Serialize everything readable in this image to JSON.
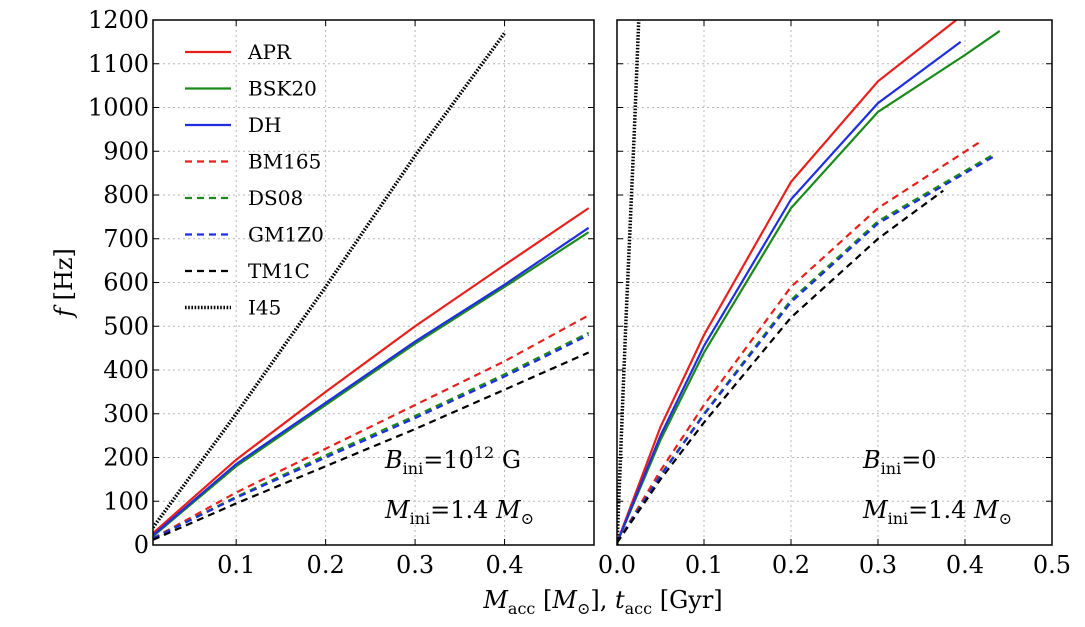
{
  "chart_data": [
    {
      "type": "line",
      "ylabel": [
        {
          "text": "f",
          "style": "italic"
        },
        {
          "text": " [Hz]",
          "style": "normal"
        }
      ],
      "xlabel": [
        {
          "text": "M",
          "style": "italic"
        },
        {
          "text": "acc",
          "style": "sub"
        },
        {
          "text": " [",
          "style": "normal"
        },
        {
          "text": "M",
          "style": "italic"
        },
        {
          "text": "⊙",
          "style": "sub"
        },
        {
          "text": "], ",
          "style": "normal"
        },
        {
          "text": "t",
          "style": "italic"
        },
        {
          "text": "acc",
          "style": "sub"
        },
        {
          "text": " [Gyr]",
          "style": "normal"
        }
      ],
      "annotations": [
        [
          {
            "text": "B",
            "style": "italic"
          },
          {
            "text": "ini",
            "style": "sub"
          },
          {
            "text": "=10",
            "style": "normal"
          },
          {
            "text": "12",
            "style": "sup"
          },
          {
            "text": " G",
            "style": "normal"
          }
        ],
        [
          {
            "text": "M",
            "style": "italic"
          },
          {
            "text": "ini",
            "style": "sub"
          },
          {
            "text": "=1.4 ",
            "style": "normal"
          },
          {
            "text": "M",
            "style": "italic"
          },
          {
            "text": "⊙",
            "style": "sub"
          }
        ]
      ],
      "legend": "upper left",
      "grid": true,
      "xlim": [
        0.007,
        0.5
      ],
      "xticks": [
        0.1,
        0.2,
        0.3,
        0.4
      ],
      "ylim": [
        0,
        1200
      ],
      "yticks": [
        0,
        100,
        200,
        300,
        400,
        500,
        600,
        700,
        800,
        900,
        1000,
        1100,
        1200
      ],
      "x": [
        0.007,
        0.1,
        0.2,
        0.3,
        0.4,
        0.494
      ],
      "series": [
        {
          "name": "APR",
          "color": "#e8201c",
          "style": "solid",
          "values": [
            27,
            195,
            350,
            500,
            640,
            770
          ]
        },
        {
          "name": "BSK20",
          "color": "#1a8a1a",
          "style": "solid",
          "values": [
            20,
            180,
            320,
            460,
            590,
            715
          ]
        },
        {
          "name": "DH",
          "color": "#1f2ee0",
          "style": "solid",
          "values": [
            22,
            185,
            325,
            465,
            595,
            725
          ]
        },
        {
          "name": "BM165",
          "color": "#e8201c",
          "style": "dashed",
          "values": [
            15,
            120,
            220,
            320,
            420,
            525
          ]
        },
        {
          "name": "DS08",
          "color": "#1a8a1a",
          "style": "dashed",
          "values": [
            15,
            110,
            205,
            295,
            390,
            485
          ]
        },
        {
          "name": "GM1Z0",
          "color": "#1f2ee0",
          "style": "dashed",
          "values": [
            15,
            108,
            200,
            290,
            385,
            480
          ]
        },
        {
          "name": "TM1C",
          "color": "#000000",
          "style": "dashed",
          "values": [
            12,
            95,
            180,
            265,
            355,
            440
          ]
        },
        {
          "name": "I45",
          "color": "#000000",
          "style": "dotted",
          "values": [
            40,
            300,
            590,
            890,
            1170,
            null
          ]
        }
      ]
    },
    {
      "type": "line",
      "annotations": [
        [
          {
            "text": "B",
            "style": "italic"
          },
          {
            "text": "ini",
            "style": "sub"
          },
          {
            "text": "=0",
            "style": "normal"
          }
        ],
        [
          {
            "text": "M",
            "style": "italic"
          },
          {
            "text": "ini",
            "style": "sub"
          },
          {
            "text": "=1.4 ",
            "style": "normal"
          },
          {
            "text": "M",
            "style": "italic"
          },
          {
            "text": "⊙",
            "style": "sub"
          }
        ]
      ],
      "grid": true,
      "xlim": [
        0,
        0.5
      ],
      "xticks": [
        {
          "value": 0,
          "label": "0.0"
        },
        0.1,
        0.2,
        0.3,
        0.4,
        0.5
      ],
      "ylim": [
        0,
        1200
      ],
      "yticks": [
        0,
        100,
        200,
        300,
        400,
        500,
        600,
        700,
        800,
        900,
        1000,
        1100,
        1200
      ],
      "series": [
        {
          "name": "APR",
          "color": "#e8201c",
          "style": "solid",
          "x": [
            0,
            0.05,
            0.1,
            0.2,
            0.3,
            0.39
          ],
          "values": [
            5,
            270,
            480,
            830,
            1060,
            1200
          ]
        },
        {
          "name": "BSK20",
          "color": "#1a8a1a",
          "style": "solid",
          "x": [
            0,
            0.05,
            0.1,
            0.2,
            0.3,
            0.4,
            0.44
          ],
          "values": [
            5,
            240,
            440,
            770,
            990,
            1120,
            1175
          ]
        },
        {
          "name": "DH",
          "color": "#1f2ee0",
          "style": "solid",
          "x": [
            0,
            0.05,
            0.1,
            0.2,
            0.3,
            0.395
          ],
          "values": [
            5,
            250,
            455,
            790,
            1010,
            1150
          ]
        },
        {
          "name": "BM165",
          "color": "#e8201c",
          "style": "dashed",
          "x": [
            0,
            0.05,
            0.1,
            0.2,
            0.3,
            0.42
          ],
          "values": [
            5,
            170,
            320,
            590,
            770,
            925
          ]
        },
        {
          "name": "DS08",
          "color": "#1a8a1a",
          "style": "dashed",
          "x": [
            0,
            0.05,
            0.1,
            0.2,
            0.3,
            0.435
          ],
          "values": [
            5,
            160,
            300,
            560,
            740,
            895
          ]
        },
        {
          "name": "GM1Z0",
          "color": "#1f2ee0",
          "style": "dashed",
          "x": [
            0,
            0.05,
            0.1,
            0.2,
            0.3,
            0.435
          ],
          "values": [
            5,
            158,
            298,
            555,
            735,
            890
          ]
        },
        {
          "name": "TM1C",
          "color": "#000000",
          "style": "dashed",
          "x": [
            0,
            0.05,
            0.1,
            0.2,
            0.3,
            0.375
          ],
          "values": [
            5,
            150,
            280,
            520,
            700,
            810
          ]
        },
        {
          "name": "I45",
          "color": "#000000",
          "style": "dotted",
          "x": [
            0,
            0.01,
            0.02,
            0.025
          ],
          "values": [
            0,
            500,
            950,
            1200
          ]
        }
      ]
    }
  ]
}
